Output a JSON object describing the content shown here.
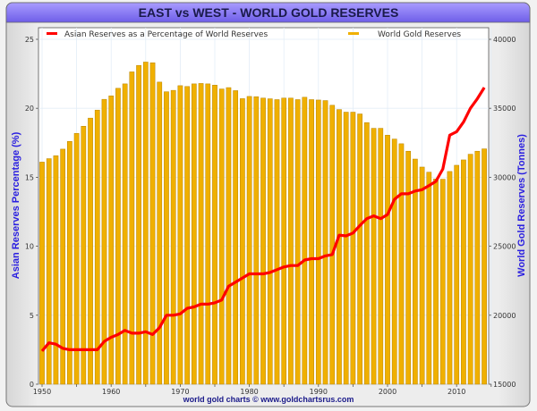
{
  "chart_data": {
    "type": "bar+line",
    "title": "EAST vs WEST - WORLD GOLD RESERVES",
    "footer": "world gold charts © www.goldchartsrus.com",
    "xlabel": "",
    "ylabel_left": "Asian Reserves Percentage (%)",
    "ylabel_right": "World Gold Reserves (Tonnes)",
    "ylim_left": [
      0,
      25
    ],
    "ylim_right": [
      15000,
      40000
    ],
    "yticks_left": [
      "0",
      "5",
      "10",
      "15",
      "20",
      "25"
    ],
    "yticks_right": [
      "15000",
      "20000",
      "25000",
      "30000",
      "35000",
      "40000"
    ],
    "xticks": [
      "1950",
      "1960",
      "1970",
      "1980",
      "1990",
      "2000",
      "2010"
    ],
    "grid": true,
    "legend_placement": "top",
    "x": [
      1950,
      1951,
      1952,
      1953,
      1954,
      1955,
      1956,
      1957,
      1958,
      1959,
      1960,
      1961,
      1962,
      1963,
      1964,
      1965,
      1966,
      1967,
      1968,
      1969,
      1970,
      1971,
      1972,
      1973,
      1974,
      1975,
      1976,
      1977,
      1978,
      1979,
      1980,
      1981,
      1982,
      1983,
      1984,
      1985,
      1986,
      1987,
      1988,
      1989,
      1990,
      1991,
      1992,
      1993,
      1994,
      1995,
      1996,
      1997,
      1998,
      1999,
      2000,
      2001,
      2002,
      2003,
      2004,
      2005,
      2006,
      2007,
      2008,
      2009,
      2010,
      2011,
      2012,
      2013,
      2014
    ],
    "series": [
      {
        "name": "Asian Reserves as a Percentage of World Reserves",
        "type": "line",
        "axis": "left",
        "color": "#ff0000",
        "values": [
          2.4,
          3.0,
          2.9,
          2.6,
          2.5,
          2.5,
          2.5,
          2.5,
          2.5,
          3.1,
          3.4,
          3.6,
          3.9,
          3.7,
          3.7,
          3.8,
          3.6,
          4.1,
          5.0,
          5.0,
          5.1,
          5.5,
          5.6,
          5.8,
          5.8,
          5.9,
          6.1,
          7.1,
          7.4,
          7.7,
          8.0,
          8.0,
          8.0,
          8.1,
          8.3,
          8.5,
          8.6,
          8.6,
          9.0,
          9.1,
          9.1,
          9.3,
          9.4,
          10.8,
          10.75,
          10.96,
          11.5,
          12.0,
          12.2,
          12.0,
          12.3,
          13.4,
          13.8,
          13.8,
          14.0,
          14.1,
          14.4,
          14.7,
          15.6,
          18.05,
          18.3,
          19.0,
          20.0,
          20.7,
          21.5
        ]
      },
      {
        "name": "World Gold Reserves",
        "type": "bar",
        "axis": "right",
        "color": "#f0b000",
        "values": [
          31100,
          31350,
          31560,
          32040,
          32600,
          33180,
          33700,
          34290,
          34870,
          35650,
          35900,
          36450,
          36770,
          37640,
          38110,
          38350,
          38300,
          36900,
          36200,
          36300,
          36640,
          36580,
          36770,
          36800,
          36770,
          36680,
          36400,
          36500,
          36280,
          35700,
          35860,
          35840,
          35740,
          35690,
          35630,
          35740,
          35740,
          35630,
          35800,
          35630,
          35600,
          35560,
          35220,
          34910,
          34720,
          34720,
          34590,
          33960,
          33550,
          33550,
          33050,
          32770,
          32430,
          31890,
          31320,
          30740,
          30370,
          29880,
          29860,
          30420,
          30870,
          31260,
          31670,
          31890,
          32060
        ]
      }
    ]
  },
  "colors": {
    "title_bar": "#7b6cf0",
    "axis_label": "#2a1fe0",
    "bar_edge": "#b88400"
  }
}
